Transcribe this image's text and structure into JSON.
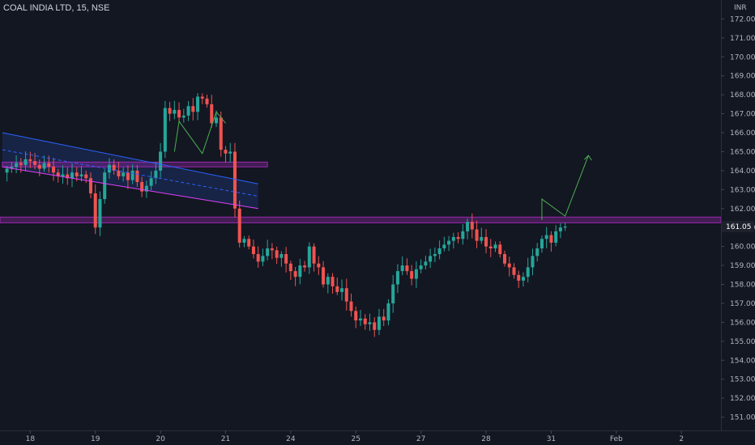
{
  "header": {
    "symbol_title": "COAL INDIA LTD, 15, NSE"
  },
  "colors": {
    "background": "#131722",
    "up": "#26a69a",
    "down": "#ef5350",
    "channel_line": "#2962ff",
    "channel_fill": "#1e2f63",
    "channel_base": "#e040fb",
    "zone": "#9c27b0",
    "arrow": "#4caf50",
    "price_tag": "#1e222d"
  },
  "chart_data": {
    "type": "candlestick",
    "title": "COAL INDIA LTD, 15, NSE",
    "currency": "INR",
    "ylim": [
      150.3,
      172.4
    ],
    "y_ticks": [
      151,
      152,
      153,
      154,
      155,
      156,
      157,
      158,
      159,
      160,
      161,
      162,
      163,
      164,
      165,
      166,
      167,
      168,
      169,
      170,
      171,
      172
    ],
    "y_tick_labels": [
      "151.00",
      "152.00",
      "153.00",
      "154.00",
      "155.00",
      "156.00",
      "157.00",
      "158.00",
      "159.00",
      "160.00",
      "161.00",
      "162.00",
      "163.00",
      "164.00",
      "165.00",
      "166.00",
      "167.00",
      "168.00",
      "169.00",
      "170.00",
      "171.00",
      "172.00"
    ],
    "x_tick_labels": [
      "18",
      "19",
      "20",
      "21",
      "24",
      "25",
      "27",
      "28",
      "31",
      "Feb",
      "2"
    ],
    "x_tick_slots": [
      6,
      20,
      34,
      48,
      62,
      76,
      90,
      104,
      118,
      132,
      146
    ],
    "slots_total": 155,
    "current_price_label": "161.05",
    "current_price": 161.05,
    "close_series": [
      163.9,
      164.1,
      164.2,
      164.4,
      164.3,
      164.6,
      164.5,
      164.3,
      164.1,
      164.4,
      164.2,
      163.9,
      163.7,
      163.8,
      163.6,
      163.9,
      163.7,
      163.8,
      163.6,
      162.8,
      161.0,
      162.5,
      163.9,
      164.3,
      164.0,
      163.7,
      163.9,
      163.5,
      164.0,
      163.4,
      162.9,
      163.2,
      163.6,
      164.0,
      165.0,
      167.3,
      167.0,
      167.2,
      166.8,
      166.9,
      167.4,
      167.1,
      167.9,
      167.8,
      167.5,
      166.5,
      166.8,
      165.1,
      164.9,
      165.0,
      162.0,
      160.2,
      160.4,
      160.0,
      159.6,
      159.2,
      159.5,
      159.9,
      159.8,
      159.4,
      159.6,
      159.1,
      158.7,
      158.4,
      159.0,
      158.9,
      160.0,
      159.1,
      158.9,
      158.0,
      158.4,
      157.9,
      157.6,
      157.8,
      157.1,
      156.6,
      156.1,
      156.2,
      155.9,
      156.0,
      155.6,
      156.3,
      156.1,
      157.0,
      158.0,
      158.7,
      159.0,
      158.7,
      158.3,
      158.8,
      159.0,
      159.2,
      159.5,
      159.6,
      159.9,
      160.1,
      160.3,
      160.5,
      160.4,
      160.8,
      161.3,
      160.9,
      160.3,
      160.5,
      160.0,
      159.9,
      160.1,
      159.6,
      159.1,
      158.9,
      158.5,
      158.2,
      158.4,
      158.9,
      159.5,
      159.9,
      160.4,
      160.6,
      160.2,
      160.8,
      161.0,
      161.05
    ],
    "annotations": {
      "channel": {
        "upper_start": 166.0,
        "upper_end": 163.3,
        "lower_start": 164.2,
        "lower_end": 162.0,
        "start_slot": 0,
        "end_slot": 55
      },
      "resistance_zone_short": {
        "top": 164.45,
        "bottom": 164.2,
        "start_slot": 0,
        "end_slot": 57
      },
      "support_zone": {
        "top": 161.55,
        "bottom": 161.25
      },
      "m_pattern": [
        165.0,
        166.6,
        164.9,
        167.1,
        166.5
      ],
      "projection_arrow": [
        161.4,
        162.5,
        161.6,
        164.8
      ]
    }
  }
}
